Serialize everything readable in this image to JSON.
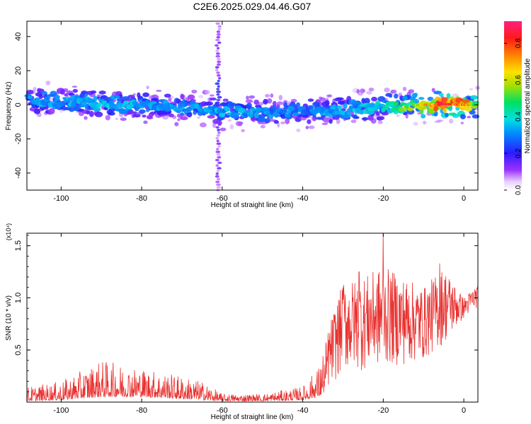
{
  "title": "C2E6.2025.029.04.46.G07",
  "chart_data": [
    {
      "type": "heatmap",
      "xlabel": "Height of straight line (km)",
      "ylabel": "Frequency (Hz)",
      "xlim": [
        -108.5,
        3.5
      ],
      "ylim": [
        -50,
        49
      ],
      "xticks": [
        -100,
        -80,
        -60,
        -40,
        -20,
        0
      ],
      "yticks": [
        -40,
        -20,
        0,
        20,
        40
      ],
      "colorbar": {
        "label": "Normalized spectral amplitude",
        "range": [
          0.0,
          0.92
        ],
        "ticks": [
          "0.0",
          "0.2",
          "0.4",
          "0.6",
          "0.8"
        ]
      },
      "trend": {
        "x": [
          -108,
          -100,
          -90,
          -80,
          -70,
          -60,
          -50,
          -40,
          -30,
          -20,
          -10,
          -5,
          0,
          3
        ],
        "center_hz": [
          3,
          2,
          1,
          0,
          -2,
          -4,
          -5,
          -4,
          -3,
          -1,
          0,
          0.5,
          0,
          0
        ],
        "peak_amplitude": [
          0.35,
          0.38,
          0.4,
          0.38,
          0.35,
          0.38,
          0.35,
          0.32,
          0.38,
          0.45,
          0.7,
          0.9,
          0.85,
          0.55
        ]
      },
      "grid": false
    },
    {
      "type": "line",
      "xlabel": "Height of straight line (km)",
      "ylabel": "SNR (10 * v/v)",
      "scale_label": "(x10⁴)",
      "xlim": [
        -108.5,
        3.5
      ],
      "ylim": [
        0,
        1.62
      ],
      "xticks": [
        -100,
        -80,
        -60,
        -40,
        -20,
        0
      ],
      "yticks": [
        "0.5",
        "1.0",
        "1.5"
      ],
      "color": "#e8312f",
      "envelope": {
        "x": [
          -108,
          -100,
          -90,
          -80,
          -70,
          -65,
          -60,
          -50,
          -40,
          -36,
          -33,
          -30,
          -25,
          -20,
          -15,
          -10,
          -5,
          0,
          3
        ],
        "low": [
          0.01,
          0.02,
          0.05,
          0.05,
          0.03,
          0.02,
          0.01,
          0.01,
          0.02,
          0.05,
          0.15,
          0.3,
          0.3,
          0.35,
          0.35,
          0.4,
          0.55,
          0.8,
          0.9
        ],
        "high": [
          0.15,
          0.2,
          0.4,
          0.33,
          0.25,
          0.2,
          0.08,
          0.08,
          0.15,
          0.35,
          0.8,
          1.15,
          1.2,
          1.3,
          1.2,
          1.1,
          1.3,
          1.0,
          1.12
        ]
      },
      "peaks": [
        {
          "x": -20,
          "y": 1.62
        },
        {
          "x": -30,
          "y": 1.1
        },
        {
          "x": -26,
          "y": 1.25
        },
        {
          "x": -6,
          "y": 1.33
        }
      ],
      "grid": false
    }
  ]
}
